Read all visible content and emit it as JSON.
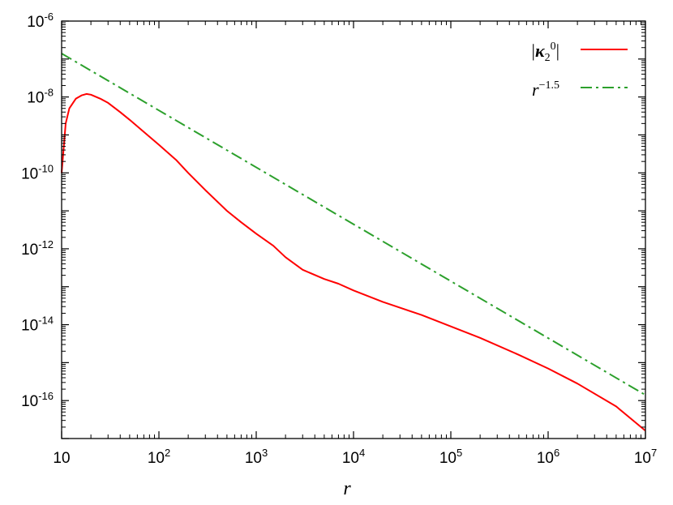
{
  "chart_data": {
    "type": "line",
    "xscale": "log",
    "yscale": "log",
    "xlim": [
      10,
      10000000
    ],
    "ylim": [
      1e-17,
      1e-06
    ],
    "xlabel": "r",
    "ylabel": "",
    "x_ticks": [
      {
        "base": "10",
        "exp": ""
      },
      {
        "base": "10",
        "exp": "2"
      },
      {
        "base": "10",
        "exp": "3"
      },
      {
        "base": "10",
        "exp": "4"
      },
      {
        "base": "10",
        "exp": "5"
      },
      {
        "base": "10",
        "exp": "6"
      },
      {
        "base": "10",
        "exp": "7"
      }
    ],
    "x_tick_values": [
      10,
      100,
      1000,
      10000,
      100000,
      1000000,
      10000000
    ],
    "y_ticks": [
      {
        "base": "10",
        "exp": "-6"
      },
      {
        "base": "10",
        "exp": "-8"
      },
      {
        "base": "10",
        "exp": "-10"
      },
      {
        "base": "10",
        "exp": "-12"
      },
      {
        "base": "10",
        "exp": "-14"
      },
      {
        "base": "10",
        "exp": "-16"
      }
    ],
    "y_tick_values": [
      1e-06,
      1e-08,
      1e-10,
      1e-12,
      1e-14,
      1e-16
    ],
    "grid": false,
    "legend_position": "top-right",
    "series": [
      {
        "name": "|κ2^0|",
        "legend": {
          "main": "κ",
          "sub": "2",
          "sup": "0"
        },
        "color": "#ff0000",
        "style": "solid",
        "x": [
          10,
          11,
          12,
          14,
          16,
          18,
          20,
          25,
          30,
          40,
          50,
          70,
          100,
          150,
          200,
          300,
          500,
          700,
          1000,
          1500,
          2000,
          3000,
          5000,
          7000,
          10000,
          20000,
          50000,
          100000,
          200000,
          500000,
          1000000,
          2000000,
          5000000,
          10000000
        ],
        "y": [
          1e-10,
          2e-09,
          5e-09,
          9e-09,
          1.1e-08,
          1.2e-08,
          1.15e-08,
          9e-09,
          7e-09,
          4e-09,
          2.5e-09,
          1.2e-09,
          5.5e-10,
          2.2e-10,
          1e-10,
          3.5e-11,
          1e-11,
          5e-12,
          2.5e-12,
          1.2e-12,
          6e-13,
          2.8e-13,
          1.6e-13,
          1.2e-13,
          8e-14,
          4e-14,
          1.8e-14,
          9e-15,
          4.5e-15,
          1.6e-15,
          7e-16,
          2.8e-16,
          7e-17,
          1.6e-17
        ]
      },
      {
        "name": "r^-1.5",
        "legend": {
          "main": "r",
          "sup": "-1.5"
        },
        "color": "#2ca02c",
        "style": "dash-dot",
        "x": [
          10,
          10000000
        ],
        "y": [
          1.4e-07,
          1.4e-16
        ]
      }
    ]
  }
}
